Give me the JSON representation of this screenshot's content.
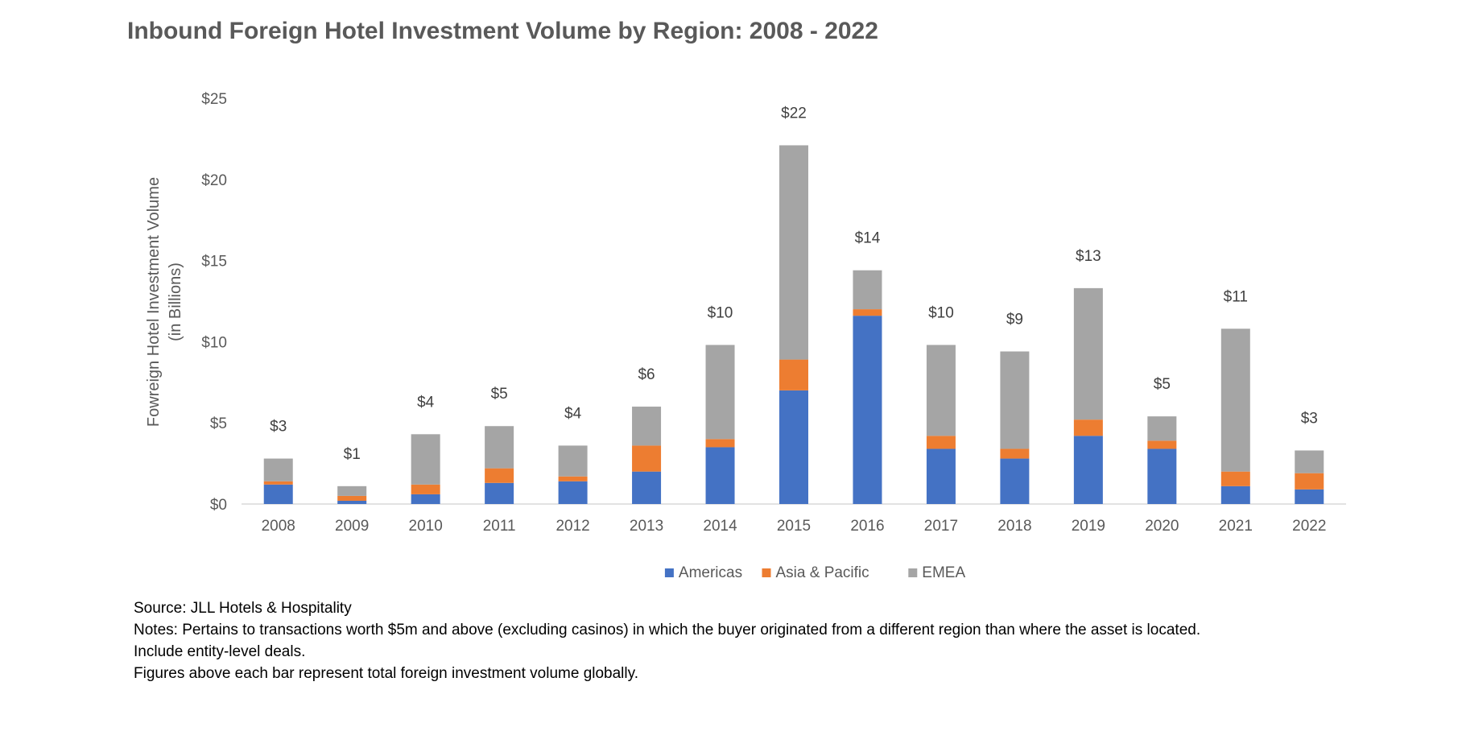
{
  "chart_data": {
    "type": "bar",
    "stacked": true,
    "title": "Inbound Foreign Hotel Investment Volume by Region: 2008 - 2022",
    "ylabel_lines": [
      "Fowreign Hotel Investment Volume",
      "(in Billions)"
    ],
    "xlabel": "",
    "ylim": [
      0,
      25
    ],
    "yticks": [
      0,
      5,
      10,
      15,
      20,
      25
    ],
    "ytick_labels": [
      "$0",
      "$5",
      "$10",
      "$15",
      "$20",
      "$25"
    ],
    "grid": false,
    "legend_position": "bottom",
    "categories": [
      "2008",
      "2009",
      "2010",
      "2011",
      "2012",
      "2013",
      "2014",
      "2015",
      "2016",
      "2017",
      "2018",
      "2019",
      "2020",
      "2021",
      "2022"
    ],
    "series": [
      {
        "name": "Americas",
        "color": "#4472C4",
        "values": [
          1.2,
          0.2,
          0.6,
          1.3,
          1.4,
          2.0,
          3.5,
          7.0,
          11.6,
          3.4,
          2.8,
          4.2,
          3.4,
          1.1,
          0.9
        ]
      },
      {
        "name": "Asia & Pacific",
        "color": "#ED7D31",
        "values": [
          0.2,
          0.3,
          0.6,
          0.9,
          0.3,
          1.6,
          0.5,
          1.9,
          0.4,
          0.8,
          0.6,
          1.0,
          0.5,
          0.9,
          1.0
        ]
      },
      {
        "name": "EMEA",
        "color": "#A5A5A5",
        "values": [
          1.4,
          0.6,
          3.1,
          2.6,
          1.9,
          2.4,
          5.8,
          13.2,
          2.4,
          5.6,
          6.0,
          8.1,
          1.5,
          8.8,
          1.4
        ]
      }
    ],
    "total_labels": [
      "$3",
      "$1",
      "$4",
      "$5",
      "$4",
      "$6",
      "$10",
      "$22",
      "$14",
      "$10",
      "$9",
      "$13",
      "$5",
      "$11",
      "$3"
    ]
  },
  "notes": {
    "source": "Source: JLL Hotels & Hospitality",
    "line1": "Notes: Pertains to transactions worth $5m and above (excluding casinos) in which the buyer originated from a different region than where the asset is located.",
    "line2": "Include entity-level deals.",
    "line3": "Figures above each bar represent total foreign investment volume globally."
  }
}
